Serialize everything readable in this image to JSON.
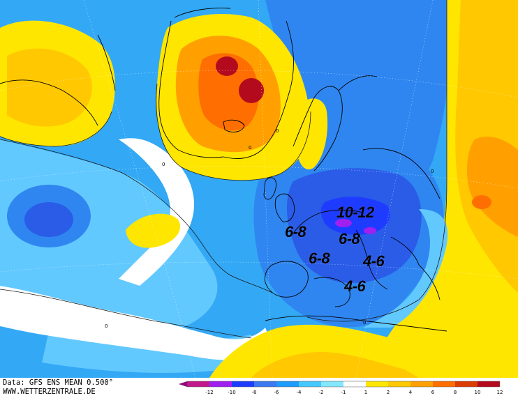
{
  "map": {
    "anomaly_labels": [
      {
        "text": "10-12"
      },
      {
        "text": "6-8"
      },
      {
        "text": "6-8"
      },
      {
        "text": "6-8"
      },
      {
        "text": "4-6"
      },
      {
        "text": "4-6"
      }
    ]
  },
  "footer": {
    "data_source": "Data: GFS ENS MEAN 0.500°",
    "website": "WWW.WETTERZENTRALE.DE"
  },
  "legend": {
    "ticks": [
      "-12",
      "-10",
      "-8",
      "-6",
      "-4",
      "-2",
      "-1",
      "1",
      "2",
      "4",
      "6",
      "8",
      "10",
      "12"
    ],
    "colors": [
      "#c2188b",
      "#a020f0",
      "#1e3cff",
      "#3c78f0",
      "#1e9bff",
      "#46c8ff",
      "#82e6ff",
      "#ffffff",
      "#ffe600",
      "#ffc800",
      "#ffa000",
      "#ff6e00",
      "#dc3c00",
      "#b40a1e"
    ],
    "end_left_color": "#8b0a78",
    "end_right_color": "#c80a32"
  }
}
